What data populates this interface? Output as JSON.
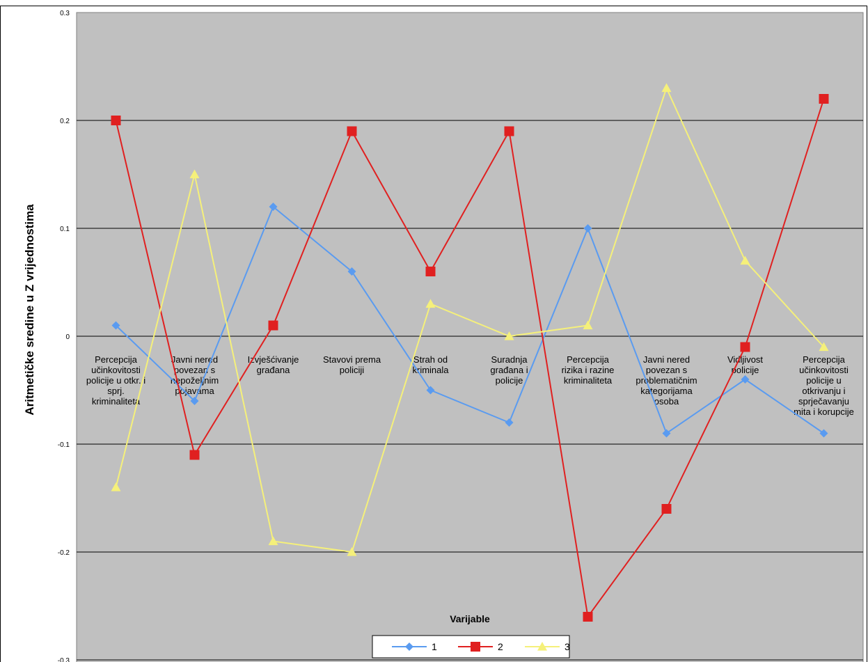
{
  "chart_data": {
    "type": "line",
    "categories": [
      [
        "Percepcija",
        "učinkovitosti",
        "policije u otkr. i",
        "sprj.",
        "kriminaliteta"
      ],
      [
        "Javni nered",
        "povezan s",
        "nepoželjnim",
        "pojavama"
      ],
      [
        "Izvješćivanje",
        "građana"
      ],
      [
        "Stavovi prema",
        "policiji"
      ],
      [
        "Strah od",
        "kriminala"
      ],
      [
        "Suradnja",
        "građana i",
        "policije"
      ],
      [
        "Percepcija",
        "rizika i razine",
        "kriminaliteta"
      ],
      [
        "Javni nered",
        "povezan s",
        "problematičnim",
        "kategorijama",
        "osoba"
      ],
      [
        "Vidljivost",
        "policije"
      ],
      [
        "Percepcija",
        "učinkovitosti",
        "policije u",
        "otkrivanju i",
        "sprječavanju",
        "mita i korupcije"
      ]
    ],
    "series": [
      {
        "name": "1",
        "color": "#5a9bf0",
        "marker": "diamond",
        "values": [
          0.01,
          -0.06,
          0.12,
          0.06,
          -0.05,
          -0.08,
          0.1,
          -0.09,
          -0.04,
          -0.09
        ]
      },
      {
        "name": "2",
        "color": "#e02020",
        "marker": "square",
        "values": [
          0.2,
          -0.11,
          0.01,
          0.19,
          0.06,
          0.19,
          -0.26,
          -0.16,
          -0.01,
          0.22
        ]
      },
      {
        "name": "3",
        "color": "#f5f07a",
        "marker": "triangle",
        "values": [
          -0.14,
          0.15,
          -0.19,
          -0.2,
          0.03,
          0.0,
          0.01,
          0.23,
          0.07,
          -0.01
        ]
      }
    ],
    "yticks": [
      "0.3",
      "0.2",
      "0.1",
      "0",
      "-0.1",
      "-0.2",
      "-0.3"
    ],
    "ylim": [
      -0.3,
      0.3
    ],
    "xlabel": "Varijable",
    "ylabel": "Aritmetičke sredine u Z vrijednostima",
    "grid": true,
    "legend": "bottom-center",
    "plot_background": "#c0c0c0"
  }
}
